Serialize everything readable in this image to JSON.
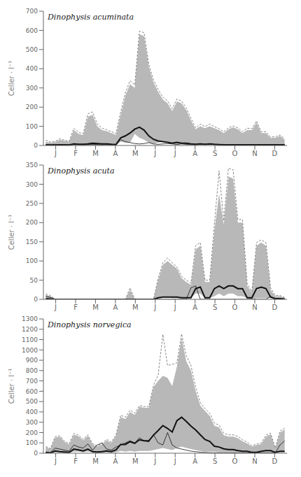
{
  "chart_data": [
    {
      "type": "line",
      "title": "Dinophysis acuminata",
      "y_label": "Celler · l⁻¹",
      "x": [
        0,
        1,
        2,
        3,
        4,
        5,
        6,
        7,
        8,
        9,
        10,
        11,
        12,
        13,
        14,
        15,
        16,
        17,
        18,
        19,
        20,
        21,
        22,
        23,
        24,
        25,
        26,
        27,
        28,
        29,
        30,
        31,
        32,
        33,
        34,
        35,
        36,
        37,
        38,
        39,
        40,
        41,
        42,
        43,
        44,
        45,
        46,
        47,
        48,
        49,
        50,
        51
      ],
      "xlim": [
        -0.5,
        51.5
      ],
      "xticks": [
        {
          "value": 2.125,
          "label": "J"
        },
        {
          "value": 6.375,
          "label": "F"
        },
        {
          "value": 10.625,
          "label": "M"
        },
        {
          "value": 14.875,
          "label": "A"
        },
        {
          "value": 19.125,
          "label": "M"
        },
        {
          "value": 23.375,
          "label": "J"
        },
        {
          "value": 27.625,
          "label": "J"
        },
        {
          "value": 31.875,
          "label": "A"
        },
        {
          "value": 36.125,
          "label": "S"
        },
        {
          "value": 40.375,
          "label": "O"
        },
        {
          "value": 44.625,
          "label": "N"
        },
        {
          "value": 48.875,
          "label": "D"
        }
      ],
      "ylim": [
        0,
        700
      ],
      "yticks": [
        0,
        100,
        200,
        300,
        400,
        500,
        600,
        700
      ],
      "grid": false,
      "series": [
        {
          "type": "area",
          "color": "#b8b8b8",
          "lower": [
            0,
            0,
            0,
            0,
            0,
            0,
            0,
            0,
            0,
            0,
            0,
            0,
            0,
            0,
            0,
            0,
            20,
            15,
            15,
            60,
            40,
            30,
            15,
            8,
            15,
            22,
            15,
            8,
            3,
            8,
            3,
            3,
            3,
            8,
            3,
            8,
            3,
            3,
            3,
            3,
            3,
            3,
            3,
            3,
            3,
            3,
            3,
            0,
            0,
            0,
            0,
            0
          ],
          "values": [
            20,
            15,
            18,
            30,
            25,
            20,
            80,
            60,
            55,
            150,
            160,
            100,
            80,
            75,
            65,
            55,
            160,
            260,
            320,
            300,
            580,
            570,
            410,
            330,
            280,
            240,
            220,
            180,
            230,
            220,
            185,
            130,
            85,
            100,
            90,
            100,
            90,
            80,
            65,
            85,
            95,
            85,
            65,
            80,
            80,
            120,
            65,
            65,
            40,
            40,
            50,
            30
          ]
        },
        {
          "type": "line",
          "color": "#666666",
          "line_style": "dashed",
          "values": [
            28,
            18,
            22,
            35,
            28,
            22,
            90,
            68,
            62,
            165,
            175,
            112,
            90,
            82,
            72,
            62,
            175,
            275,
            338,
            315,
            595,
            588,
            422,
            342,
            292,
            252,
            232,
            192,
            242,
            232,
            195,
            142,
            92,
            112,
            98,
            112,
            98,
            88,
            72,
            92,
            102,
            92,
            72,
            90,
            88,
            128,
            72,
            72,
            45,
            45,
            55,
            35
          ]
        },
        {
          "type": "line",
          "color": "#111111",
          "line_style": "solid",
          "values": [
            4,
            3,
            3,
            4,
            4,
            3,
            8,
            6,
            6,
            8,
            12,
            10,
            8,
            8,
            6,
            5,
            40,
            50,
            65,
            85,
            95,
            80,
            50,
            32,
            24,
            20,
            16,
            12,
            16,
            12,
            12,
            8,
            6,
            8,
            6,
            8,
            6,
            5,
            4,
            4,
            4,
            4,
            4,
            4,
            4,
            4,
            4,
            4,
            4,
            4,
            4,
            4
          ]
        },
        {
          "type": "line",
          "color": "#111111",
          "line_style": "solid",
          "values": [
            5,
            4,
            5,
            4,
            5,
            4,
            6,
            5,
            4,
            5,
            6,
            5,
            4,
            5,
            4,
            5,
            30,
            20,
            15,
            10,
            8,
            10,
            15,
            8,
            6,
            8,
            10,
            8,
            5,
            8,
            6,
            5,
            4,
            6,
            5,
            6,
            5,
            4,
            4,
            5,
            5,
            4,
            4,
            5,
            5,
            5,
            5,
            4,
            4,
            4,
            4,
            4
          ]
        }
      ]
    },
    {
      "type": "line",
      "title": "Dinophysis acuta",
      "y_label": "Celler · l⁻¹",
      "x": [
        0,
        1,
        2,
        3,
        4,
        5,
        6,
        7,
        8,
        9,
        10,
        11,
        12,
        13,
        14,
        15,
        16,
        17,
        18,
        19,
        20,
        21,
        22,
        23,
        24,
        25,
        26,
        27,
        28,
        29,
        30,
        31,
        32,
        33,
        34,
        35,
        36,
        37,
        38,
        39,
        40,
        41,
        42,
        43,
        44,
        45,
        46,
        47,
        48,
        49,
        50,
        51
      ],
      "xlim": [
        -0.5,
        51.5
      ],
      "xticks": [
        {
          "value": 2.125,
          "label": "J"
        },
        {
          "value": 6.375,
          "label": "F"
        },
        {
          "value": 10.625,
          "label": "M"
        },
        {
          "value": 14.875,
          "label": "A"
        },
        {
          "value": 19.125,
          "label": "M"
        },
        {
          "value": 23.375,
          "label": "J"
        },
        {
          "value": 27.625,
          "label": "J"
        },
        {
          "value": 31.875,
          "label": "A"
        },
        {
          "value": 36.125,
          "label": "S"
        },
        {
          "value": 40.375,
          "label": "O"
        },
        {
          "value": 44.625,
          "label": "N"
        },
        {
          "value": 48.875,
          "label": "D"
        }
      ],
      "ylim": [
        0,
        350
      ],
      "yticks": [
        0,
        50,
        100,
        150,
        200,
        250,
        300,
        350
      ],
      "grid": false,
      "series": [
        {
          "type": "area",
          "color": "#b8b8b8",
          "lower": [
            0,
            0,
            0,
            0,
            0,
            0,
            0,
            0,
            0,
            0,
            0,
            0,
            0,
            0,
            0,
            0,
            0,
            0,
            0,
            0,
            0,
            0,
            0,
            0,
            3,
            6,
            6,
            3,
            3,
            3,
            3,
            3,
            15,
            15,
            3,
            3,
            8,
            15,
            8,
            15,
            15,
            8,
            8,
            3,
            0,
            3,
            3,
            3,
            3,
            0,
            0,
            0
          ],
          "values": [
            12,
            8,
            0,
            0,
            0,
            0,
            0,
            0,
            0,
            0,
            0,
            0,
            0,
            0,
            0,
            0,
            0,
            0,
            25,
            0,
            0,
            0,
            0,
            0,
            50,
            90,
            100,
            90,
            80,
            55,
            45,
            38,
            130,
            140,
            45,
            45,
            180,
            275,
            195,
            320,
            315,
            200,
            200,
            35,
            18,
            140,
            148,
            140,
            25,
            8,
            8,
            4
          ]
        },
        {
          "type": "line",
          "color": "#666666",
          "line_style": "dashed",
          "values": [
            14,
            10,
            0,
            0,
            0,
            0,
            0,
            0,
            0,
            0,
            0,
            0,
            0,
            0,
            0,
            0,
            0,
            0,
            30,
            0,
            0,
            0,
            0,
            0,
            55,
            95,
            108,
            95,
            85,
            60,
            50,
            42,
            140,
            148,
            50,
            50,
            195,
            335,
            205,
            342,
            338,
            208,
            208,
            40,
            20,
            148,
            155,
            148,
            30,
            10,
            10,
            5
          ]
        },
        {
          "type": "line",
          "color": "#111111",
          "line_style": "solid",
          "values": [
            2,
            1,
            0,
            0,
            0,
            0,
            0,
            0,
            0,
            0,
            0,
            0,
            0,
            0,
            0,
            0,
            0,
            0,
            0,
            0,
            0,
            0,
            0,
            0,
            4,
            6,
            6,
            6,
            6,
            4,
            4,
            4,
            28,
            32,
            4,
            4,
            28,
            35,
            28,
            35,
            35,
            28,
            28,
            4,
            4,
            28,
            32,
            28,
            6,
            2,
            2,
            1
          ]
        },
        {
          "type": "line",
          "color": "#111111",
          "line_style": "solid",
          "values": [
            8,
            5,
            0,
            0,
            0,
            0,
            0,
            0,
            0,
            0,
            0,
            0,
            0,
            0,
            0,
            0,
            0,
            0,
            0,
            0,
            0,
            0,
            0,
            0,
            0,
            0,
            0,
            0,
            0,
            0,
            0,
            30,
            35,
            0,
            0,
            0,
            0,
            0,
            0,
            0,
            0,
            0,
            0,
            0,
            0,
            0,
            0,
            0,
            8,
            0,
            0,
            0
          ]
        }
      ]
    },
    {
      "type": "line",
      "title": "Dinophysis norvegica",
      "y_label": "Celler · l⁻¹",
      "x": [
        0,
        1,
        2,
        3,
        4,
        5,
        6,
        7,
        8,
        9,
        10,
        11,
        12,
        13,
        14,
        15,
        16,
        17,
        18,
        19,
        20,
        21,
        22,
        23,
        24,
        25,
        26,
        27,
        28,
        29,
        30,
        31,
        32,
        33,
        34,
        35,
        36,
        37,
        38,
        39,
        40,
        41,
        42,
        43,
        44,
        45,
        46,
        47,
        48,
        49,
        50,
        51
      ],
      "xlim": [
        -0.5,
        51.5
      ],
      "xticks": [
        {
          "value": 2.125,
          "label": "J"
        },
        {
          "value": 6.375,
          "label": "F"
        },
        {
          "value": 10.625,
          "label": "M"
        },
        {
          "value": 14.875,
          "label": "A"
        },
        {
          "value": 19.125,
          "label": "M"
        },
        {
          "value": 23.375,
          "label": "J"
        },
        {
          "value": 27.625,
          "label": "J"
        },
        {
          "value": 31.875,
          "label": "A"
        },
        {
          "value": 36.125,
          "label": "S"
        },
        {
          "value": 40.375,
          "label": "O"
        },
        {
          "value": 44.625,
          "label": "N"
        },
        {
          "value": 48.875,
          "label": "D"
        }
      ],
      "ylim": [
        0,
        1300
      ],
      "yticks": [
        0,
        100,
        200,
        300,
        400,
        500,
        600,
        700,
        800,
        900,
        1000,
        1100,
        1200,
        1300
      ],
      "grid": false,
      "series": [
        {
          "type": "area",
          "color": "#b8b8b8",
          "lower": [
            0,
            0,
            8,
            8,
            3,
            3,
            15,
            15,
            8,
            15,
            8,
            3,
            3,
            8,
            3,
            8,
            22,
            15,
            22,
            15,
            22,
            22,
            22,
            30,
            40,
            50,
            40,
            30,
            50,
            65,
            50,
            40,
            30,
            22,
            15,
            15,
            15,
            8,
            8,
            8,
            8,
            8,
            8,
            8,
            3,
            3,
            8,
            8,
            8,
            3,
            8,
            8
          ],
          "values": [
            60,
            40,
            150,
            160,
            110,
            85,
            180,
            165,
            125,
            170,
            85,
            65,
            85,
            125,
            100,
            170,
            350,
            330,
            400,
            370,
            450,
            440,
            440,
            640,
            700,
            750,
            730,
            650,
            840,
            1120,
            890,
            800,
            600,
            460,
            410,
            360,
            265,
            250,
            175,
            160,
            160,
            145,
            115,
            95,
            65,
            80,
            90,
            160,
            185,
            45,
            200,
            230
          ]
        },
        {
          "type": "line",
          "color": "#666666",
          "line_style": "dashed",
          "values": [
            65,
            45,
            160,
            168,
            118,
            92,
            192,
            175,
            135,
            178,
            92,
            72,
            92,
            135,
            108,
            178,
            368,
            348,
            418,
            388,
            462,
            452,
            452,
            658,
            758,
            1150,
            850,
            860,
            875,
            1155,
            945,
            850,
            638,
            488,
            432,
            385,
            292,
            272,
            195,
            178,
            178,
            162,
            130,
            108,
            72,
            88,
            100,
            175,
            195,
            50,
            215,
            242
          ]
        },
        {
          "type": "line",
          "color": "#111111",
          "line_style": "solid",
          "values": [
            8,
            4,
            22,
            15,
            12,
            8,
            40,
            32,
            22,
            40,
            15,
            12,
            15,
            22,
            15,
            32,
            85,
            85,
            112,
            95,
            130,
            120,
            120,
            175,
            220,
            268,
            240,
            205,
            315,
            348,
            308,
            262,
            225,
            178,
            132,
            115,
            68,
            60,
            42,
            35,
            35,
            25,
            18,
            18,
            8,
            8,
            18,
            25,
            25,
            8,
            18,
            18
          ]
        },
        {
          "type": "line",
          "color": "#111111",
          "line_style": "solid",
          "values": [
            5,
            3,
            50,
            40,
            30,
            20,
            80,
            60,
            50,
            90,
            30,
            80,
            100,
            40,
            30,
            60,
            80,
            100,
            120,
            100,
            150,
            120,
            110,
            180,
            100,
            80,
            200,
            80,
            50,
            40,
            30,
            20,
            15,
            10,
            8,
            5,
            4,
            3,
            3,
            3,
            3,
            3,
            3,
            3,
            3,
            3,
            3,
            3,
            3,
            3,
            80,
            120
          ]
        }
      ]
    }
  ]
}
